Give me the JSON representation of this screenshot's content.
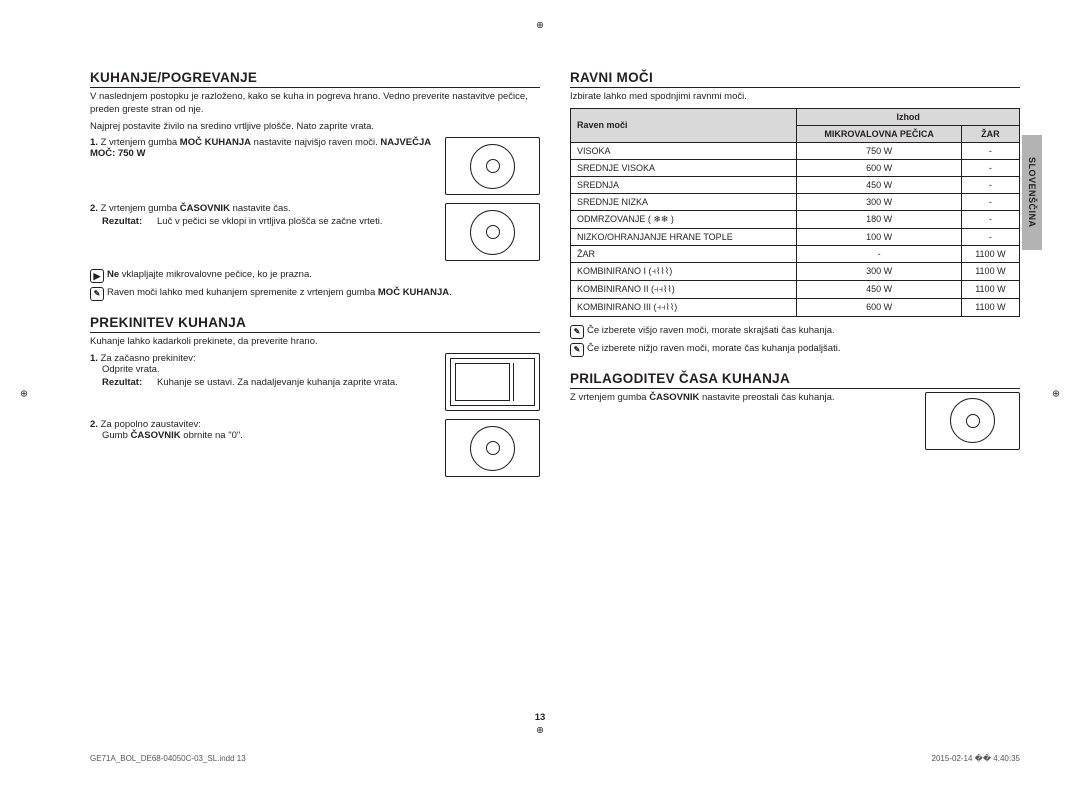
{
  "sidetab": "SLOVENŠČINA",
  "pagenum": "13",
  "footer": {
    "left": "GE71A_BOL_DE68-04050C-03_SL.indd   13",
    "right": "2015-02-14   �� 4:40:35"
  },
  "left": {
    "sec1": {
      "title": "KUHANJE/POGREVANJE",
      "p1": "V naslednjem postopku je razloženo, kako se kuha in pogreva hrano. Vedno preverite nastavitve pečice, preden greste stran od nje.",
      "p2": "Najprej postavite živilo na sredino vrtljive plošče. Nato zaprite vrata.",
      "s1a": "1.",
      "s1b": " Z vrtenjem gumba ",
      "s1c": "MOČ KUHANJA",
      "s1d": " nastavite najvišjo raven moči. ",
      "s1e": "NAJVEČJA MOČ: 750 W",
      "s2a": "2.",
      "s2b": " Z vrtenjem gumba ",
      "s2c": "ČASOVNIK",
      "s2d": " nastavite čas.",
      "resLbl": "Rezultat:",
      "resVal": "Luč v pečici se vklopi in vrtljiva plošča se začne vrteti.",
      "warnA": "Ne",
      "warnB": " vklapljajte mikrovalovne pečice, ko je prazna.",
      "noteA": "Raven moči lahko med kuhanjem spremenite z vrtenjem gumba ",
      "noteB": "MOČ KUHANJA",
      "noteC": "."
    },
    "sec2": {
      "title": "PREKINITEV KUHANJA",
      "p1": "Kuhanje lahko kadarkoli prekinete, da preverite hrano.",
      "s1a": "1.",
      "s1b": " Za začasno prekinitev:",
      "s1c": "Odprite vrata.",
      "resLbl": "Rezultat:",
      "resVal": "Kuhanje se ustavi. Za nadaljevanje kuhanja zaprite vrata.",
      "s2a": "2.",
      "s2b": " Za popolno zaustavitev:",
      "s2c": "Gumb ",
      "s2d": "ČASOVNIK",
      "s2e": " obrnite na \"0\"."
    }
  },
  "right": {
    "sec1": {
      "title": "RAVNI MOČI",
      "p1": "Izbirate lahko med spodnjimi ravnmi moči.",
      "th1": "Raven moči",
      "thOut": "Izhod",
      "th2": "MIKROVALOVNA PEČICA",
      "th3": "ŽAR",
      "rows": [
        [
          "VISOKA",
          "750 W",
          "-"
        ],
        [
          "SREDNJE VISOKA",
          "600 W",
          "-"
        ],
        [
          "SREDNJA",
          "450 W",
          "-"
        ],
        [
          "SREDNJE NIZKA",
          "300 W",
          "-"
        ],
        [
          "ODMRZOVANJE ( ❄❄ )",
          "180 W",
          "-"
        ],
        [
          "NIZKO/OHRANJANJE HRANE TOPLE",
          "100 W",
          "-"
        ],
        [
          "ŽAR",
          "-",
          "1100 W"
        ],
        [
          "KOMBINIRANO I (⫞⌇⌇⌇)",
          "300 W",
          "1100 W"
        ],
        [
          "KOMBINIRANO II (⫞⫞⌇⌇)",
          "450 W",
          "1100 W"
        ],
        [
          "KOMBINIRANO III (⫞⫞⌇⌇)",
          "600 W",
          "1100 W"
        ]
      ],
      "n1": "Če izberete višjo raven moči, morate skrajšati čas kuhanja.",
      "n2": "Če izberete nižjo raven moči, morate čas kuhanja podaljšati."
    },
    "sec2": {
      "title": "PRILAGODITEV ČASA KUHANJA",
      "p1a": "Z vrtenjem gumba ",
      "p1b": "ČASOVNIK",
      "p1c": " nastavite preostali čas kuhanja."
    }
  }
}
